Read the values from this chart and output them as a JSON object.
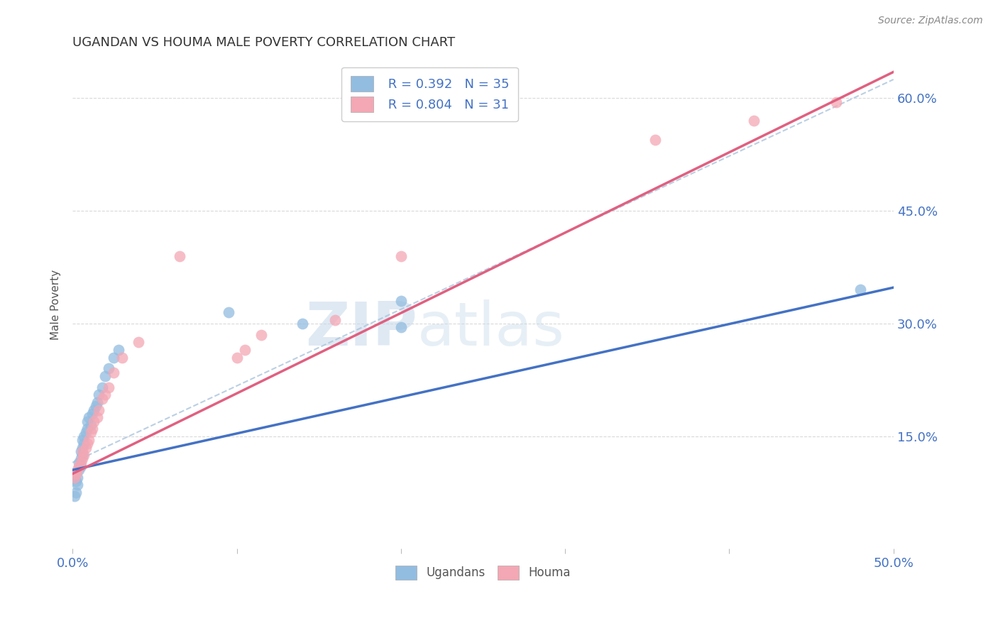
{
  "title": "UGANDAN VS HOUMA MALE POVERTY CORRELATION CHART",
  "source": "Source: ZipAtlas.com",
  "ylabel": "Male Poverty",
  "xlim": [
    0.0,
    0.5
  ],
  "ylim": [
    0.0,
    0.65
  ],
  "yticks": [
    0.15,
    0.3,
    0.45,
    0.6
  ],
  "ytick_labels": [
    "15.0%",
    "30.0%",
    "45.0%",
    "60.0%"
  ],
  "xtick_labels": [
    "0.0%",
    "",
    "",
    "",
    "",
    "50.0%"
  ],
  "legend_R1": "R = 0.392",
  "legend_N1": "N = 35",
  "legend_R2": "R = 0.804",
  "legend_N2": "N = 31",
  "ugandan_color": "#92bce0",
  "houma_color": "#f4a7b4",
  "ugandan_line_color": "#4472c4",
  "houma_line_color": "#e06080",
  "dashed_line_color": "#aac4dc",
  "background_color": "#ffffff",
  "grid_color": "#d0d0d0",
  "watermark1": "ZIP",
  "watermark2": "atlas",
  "ugandan_x": [
    0.001,
    0.002,
    0.002,
    0.003,
    0.003,
    0.004,
    0.004,
    0.005,
    0.005,
    0.005,
    0.006,
    0.006,
    0.006,
    0.007,
    0.007,
    0.008,
    0.009,
    0.009,
    0.01,
    0.011,
    0.012,
    0.013,
    0.014,
    0.015,
    0.016,
    0.018,
    0.02,
    0.022,
    0.025,
    0.028,
    0.095,
    0.14,
    0.2,
    0.2,
    0.48
  ],
  "ugandan_y": [
    0.07,
    0.075,
    0.09,
    0.085,
    0.095,
    0.105,
    0.115,
    0.11,
    0.12,
    0.13,
    0.125,
    0.135,
    0.145,
    0.14,
    0.15,
    0.155,
    0.16,
    0.17,
    0.175,
    0.165,
    0.18,
    0.185,
    0.19,
    0.195,
    0.205,
    0.215,
    0.23,
    0.24,
    0.255,
    0.265,
    0.315,
    0.3,
    0.295,
    0.33,
    0.345
  ],
  "houma_x": [
    0.001,
    0.002,
    0.003,
    0.004,
    0.005,
    0.006,
    0.006,
    0.007,
    0.008,
    0.009,
    0.01,
    0.011,
    0.012,
    0.013,
    0.015,
    0.016,
    0.018,
    0.02,
    0.022,
    0.025,
    0.03,
    0.04,
    0.065,
    0.1,
    0.105,
    0.115,
    0.16,
    0.2,
    0.355,
    0.415,
    0.465
  ],
  "houma_y": [
    0.095,
    0.1,
    0.105,
    0.11,
    0.115,
    0.12,
    0.13,
    0.125,
    0.135,
    0.14,
    0.145,
    0.155,
    0.16,
    0.17,
    0.175,
    0.185,
    0.2,
    0.205,
    0.215,
    0.235,
    0.255,
    0.275,
    0.39,
    0.255,
    0.265,
    0.285,
    0.305,
    0.39,
    0.545,
    0.57,
    0.595
  ],
  "ugandan_line": [
    0.0,
    0.5,
    0.105,
    0.348
  ],
  "houma_line": [
    0.0,
    0.5,
    0.1,
    0.635
  ],
  "dashed_line": [
    0.0,
    0.5,
    0.115,
    0.625
  ]
}
